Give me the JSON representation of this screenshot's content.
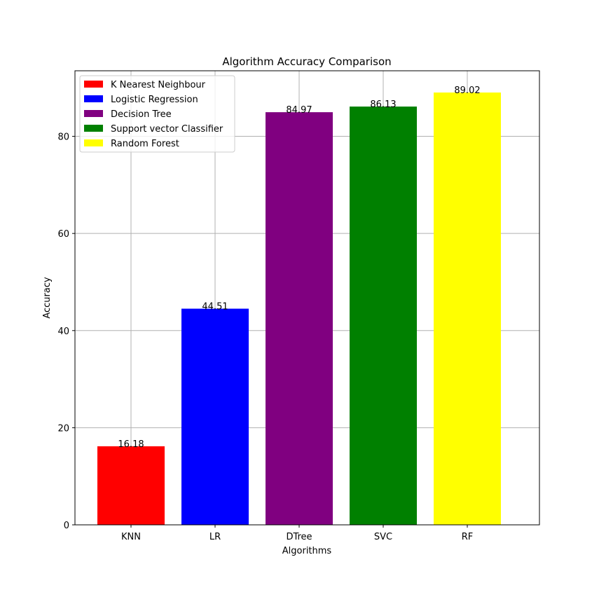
{
  "chart_data": {
    "type": "bar",
    "title": "Algorithm Accuracy Comparison",
    "xlabel": "Algorithms",
    "ylabel": "Accuracy",
    "categories": [
      "KNN",
      "LR",
      "DTree",
      "SVC",
      "RF"
    ],
    "values": [
      16.18,
      44.51,
      84.97,
      86.13,
      89.02
    ],
    "data_labels": [
      "16.18",
      "44.51",
      "84.97",
      "86.13",
      "89.02"
    ],
    "colors": [
      "#ff0000",
      "#0000ff",
      "#800080",
      "#008000",
      "#ffff00"
    ],
    "legend": {
      "placement": "top-left",
      "entries": [
        "K Nearest Neighbour",
        "Logistic Regression",
        "Decision Tree",
        "Support vector Classifier",
        "Random Forest"
      ]
    },
    "yticks": [
      0,
      20,
      40,
      60,
      80
    ],
    "ylim": [
      0,
      93.5
    ],
    "grid": true
  }
}
